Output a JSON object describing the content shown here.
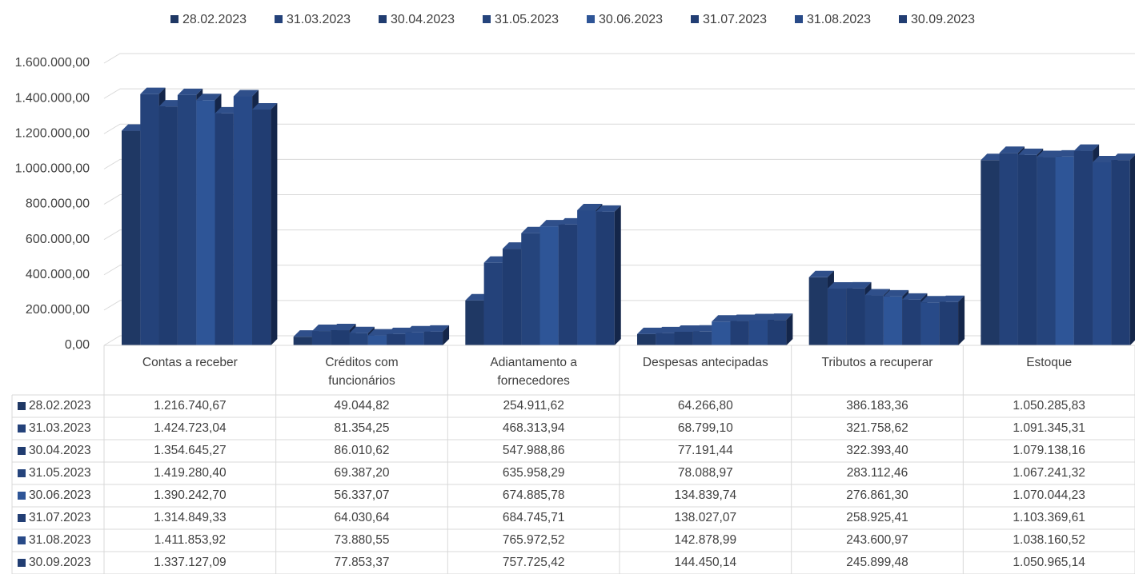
{
  "chart_data": {
    "type": "bar3d",
    "categories": [
      "Contas a receber",
      "Créditos com funcionários",
      "Adiantamento a fornecedores",
      "Despesas antecipadas",
      "Tributos a recuperar",
      "Estoque"
    ],
    "ylim": [
      0,
      1600000
    ],
    "yticks": [
      {
        "value": 0,
        "label": "0,00"
      },
      {
        "value": 200000,
        "label": "200.000,00"
      },
      {
        "value": 400000,
        "label": "400.000,00"
      },
      {
        "value": 600000,
        "label": "600.000,00"
      },
      {
        "value": 800000,
        "label": "800.000,00"
      },
      {
        "value": 1000000,
        "label": "1.000.000,00"
      },
      {
        "value": 1200000,
        "label": "1.200.000,00"
      },
      {
        "value": 1400000,
        "label": "1.400.000,00"
      },
      {
        "value": 1600000,
        "label": "1.600.000,00"
      }
    ],
    "grid": true,
    "legend": "top",
    "series": [
      {
        "name": "28.02.2023",
        "color": "#1f3864",
        "values": [
          1216740.67,
          49044.82,
          254911.62,
          64266.8,
          386183.36,
          1050285.83
        ],
        "value_labels": [
          "1.216.740,67",
          "49.044,82",
          "254.911,62",
          "64.266,80",
          "386.183,36",
          "1.050.285,83"
        ]
      },
      {
        "name": "31.03.2023",
        "color": "#24427a",
        "values": [
          1424723.04,
          81354.25,
          468313.94,
          68799.1,
          321758.62,
          1091345.31
        ],
        "value_labels": [
          "1.424.723,04",
          "81.354,25",
          "468.313,94",
          "68.799,10",
          "321.758,62",
          "1.091.345,31"
        ]
      },
      {
        "name": "30.04.2023",
        "color": "#203c70",
        "values": [
          1354645.27,
          86010.62,
          547988.86,
          77191.44,
          322393.4,
          1079138.16
        ],
        "value_labels": [
          "1.354.645,27",
          "86.010,62",
          "547.988,86",
          "77.191,44",
          "322.393,40",
          "1.079.138,16"
        ]
      },
      {
        "name": "31.05.2023",
        "color": "#25447c",
        "values": [
          1419280.4,
          69387.2,
          635958.29,
          78088.97,
          283112.46,
          1067241.32
        ],
        "value_labels": [
          "1.419.280,40",
          "69.387,20",
          "635.958,29",
          "78.088,97",
          "283.112,46",
          "1.067.241,32"
        ]
      },
      {
        "name": "30.06.2023",
        "color": "#2e5597",
        "values": [
          1390242.7,
          56337.07,
          674885.78,
          134839.74,
          276861.3,
          1070044.23
        ],
        "value_labels": [
          "1.390.242,70",
          "56.337,07",
          "674.885,78",
          "134.839,74",
          "276.861,30",
          "1.070.044,23"
        ]
      },
      {
        "name": "31.07.2023",
        "color": "#223e74",
        "values": [
          1314849.33,
          64030.64,
          684745.71,
          138027.07,
          258925.41,
          1103369.61
        ],
        "value_labels": [
          "1.314.849,33",
          "64.030,64",
          "684.745,71",
          "138.027,07",
          "258.925,41",
          "1.103.369,61"
        ]
      },
      {
        "name": "31.08.2023",
        "color": "#284a88",
        "values": [
          1411853.92,
          73880.55,
          765972.52,
          142878.99,
          243600.97,
          1038160.52
        ],
        "value_labels": [
          "1.411.853,92",
          "73.880,55",
          "765.972,52",
          "142.878,99",
          "243.600,97",
          "1.038.160,52"
        ]
      },
      {
        "name": "30.09.2023",
        "color": "#213d72",
        "values": [
          1337127.09,
          77853.37,
          757725.42,
          144450.14,
          245899.48,
          1050965.14
        ],
        "value_labels": [
          "1.337.127,09",
          "77.853,37",
          "757.725,42",
          "144.450,14",
          "245.899,48",
          "1.050.965,14"
        ]
      }
    ]
  }
}
